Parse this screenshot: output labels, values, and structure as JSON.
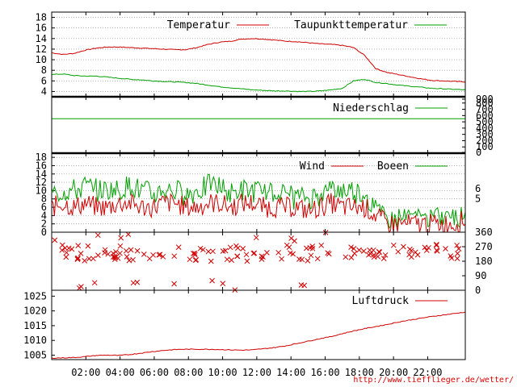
{
  "chart_data": [
    {
      "type": "line",
      "y_ticks": [
        "18",
        "16",
        "14",
        "12",
        "10",
        "8",
        "6",
        "4"
      ],
      "ylim": [
        3,
        19
      ],
      "grid": true,
      "legend_position": "top",
      "series": [
        {
          "name": "Temperatur",
          "color": "#d00000",
          "values": [
            11.3,
            11.0,
            11.2,
            11.8,
            12.2,
            12.4,
            12.4,
            12.3,
            12.2,
            12.1,
            12.0,
            11.9,
            11.9,
            12.3,
            12.9,
            13.3,
            13.5,
            13.9,
            14.0,
            13.9,
            13.7,
            13.5,
            13.4,
            13.2,
            13.0,
            12.9,
            12.7,
            12.3,
            10.8,
            8.3,
            7.6,
            7.2,
            6.8,
            6.4,
            6.1,
            6.0,
            5.9,
            5.8
          ]
        },
        {
          "name": "Taupunkttemperatur",
          "color": "#00a000",
          "values": [
            7.2,
            7.3,
            7.0,
            6.9,
            6.9,
            6.7,
            6.5,
            6.3,
            6.2,
            6.0,
            5.9,
            5.8,
            5.7,
            5.5,
            5.2,
            4.9,
            4.7,
            4.5,
            4.3,
            4.2,
            4.1,
            4.1,
            4.0,
            4.0,
            4.1,
            4.3,
            4.6,
            6.0,
            6.3,
            5.7,
            5.5,
            5.2,
            5.0,
            4.8,
            4.6,
            4.5,
            4.4,
            4.3
          ]
        }
      ]
    },
    {
      "type": "line",
      "y_ticks_right": [
        "900",
        "800",
        "700",
        "600",
        "500",
        "400",
        "300",
        "200",
        "100",
        "0"
      ],
      "ylim": [
        0,
        900
      ],
      "series": [
        {
          "name": "Niederschlag",
          "color": "#00a000",
          "values": [
            550,
            550,
            550,
            550,
            550,
            550,
            550,
            550,
            550,
            550,
            550,
            550,
            550,
            550,
            550,
            550,
            550,
            550,
            550,
            550,
            550,
            550,
            550,
            550,
            550,
            550,
            550,
            550,
            550,
            550,
            550,
            550,
            550,
            550,
            550,
            550,
            550,
            550
          ]
        }
      ]
    },
    {
      "type": "line",
      "y_ticks": [
        "18",
        "16",
        "14",
        "12",
        "10",
        "8",
        "6",
        "4",
        "2",
        "0"
      ],
      "y_ticks_right": [
        "6",
        "5"
      ],
      "ylim": [
        0,
        19
      ],
      "series": [
        {
          "name": "Wind",
          "color": "#d00000",
          "values": [
            6,
            7,
            6,
            7,
            6,
            6,
            7,
            7,
            6,
            6,
            7,
            7,
            6,
            6,
            7,
            7,
            6,
            7,
            7,
            6,
            6,
            6,
            6,
            5,
            6,
            7,
            6,
            6,
            6,
            4,
            2,
            2,
            2,
            2,
            2,
            2,
            2,
            3
          ]
        },
        {
          "name": "Boeen",
          "color": "#00a000",
          "values": [
            9,
            10,
            10,
            11,
            10,
            10,
            10,
            11,
            10,
            9,
            10,
            10,
            9,
            10,
            11,
            11,
            9,
            10,
            10,
            9,
            9,
            9,
            8,
            8,
            9,
            10,
            10,
            10,
            9,
            5,
            2,
            3,
            3,
            3,
            3,
            3,
            3,
            4
          ]
        }
      ]
    },
    {
      "type": "scatter",
      "y_ticks_right": [
        "360",
        "270",
        "180",
        "90",
        "0"
      ],
      "ylim": [
        0,
        360
      ],
      "series": [
        {
          "name": "",
          "color": "#d00000",
          "marker": "x"
        }
      ]
    },
    {
      "type": "line",
      "y_ticks": [
        "1025",
        "1020",
        "1015",
        "1010",
        "1005"
      ],
      "ylim": [
        1003.5,
        1027
      ],
      "series": [
        {
          "name": "Luftdruck",
          "color": "#d00000",
          "values": [
            1004.0,
            1004.1,
            1004.2,
            1004.5,
            1004.9,
            1005.0,
            1004.9,
            1005.2,
            1005.7,
            1006.2,
            1006.6,
            1006.9,
            1007.0,
            1007.0,
            1007.0,
            1006.9,
            1006.8,
            1006.7,
            1006.8,
            1007.2,
            1007.6,
            1008.2,
            1009.0,
            1009.8,
            1010.6,
            1011.3,
            1012.3,
            1013.2,
            1014.0,
            1014.7,
            1015.4,
            1016.2,
            1016.9,
            1017.5,
            1018.1,
            1018.6,
            1019.1,
            1019.6
          ]
        }
      ]
    }
  ],
  "x_ticks": [
    "02:00",
    "04:00",
    "06:00",
    "08:00",
    "10:00",
    "12:00",
    "14:00",
    "16:00",
    "18:00",
    "20:00",
    "22:00"
  ],
  "url": "http://www.tiefflieger.de/wetter/"
}
